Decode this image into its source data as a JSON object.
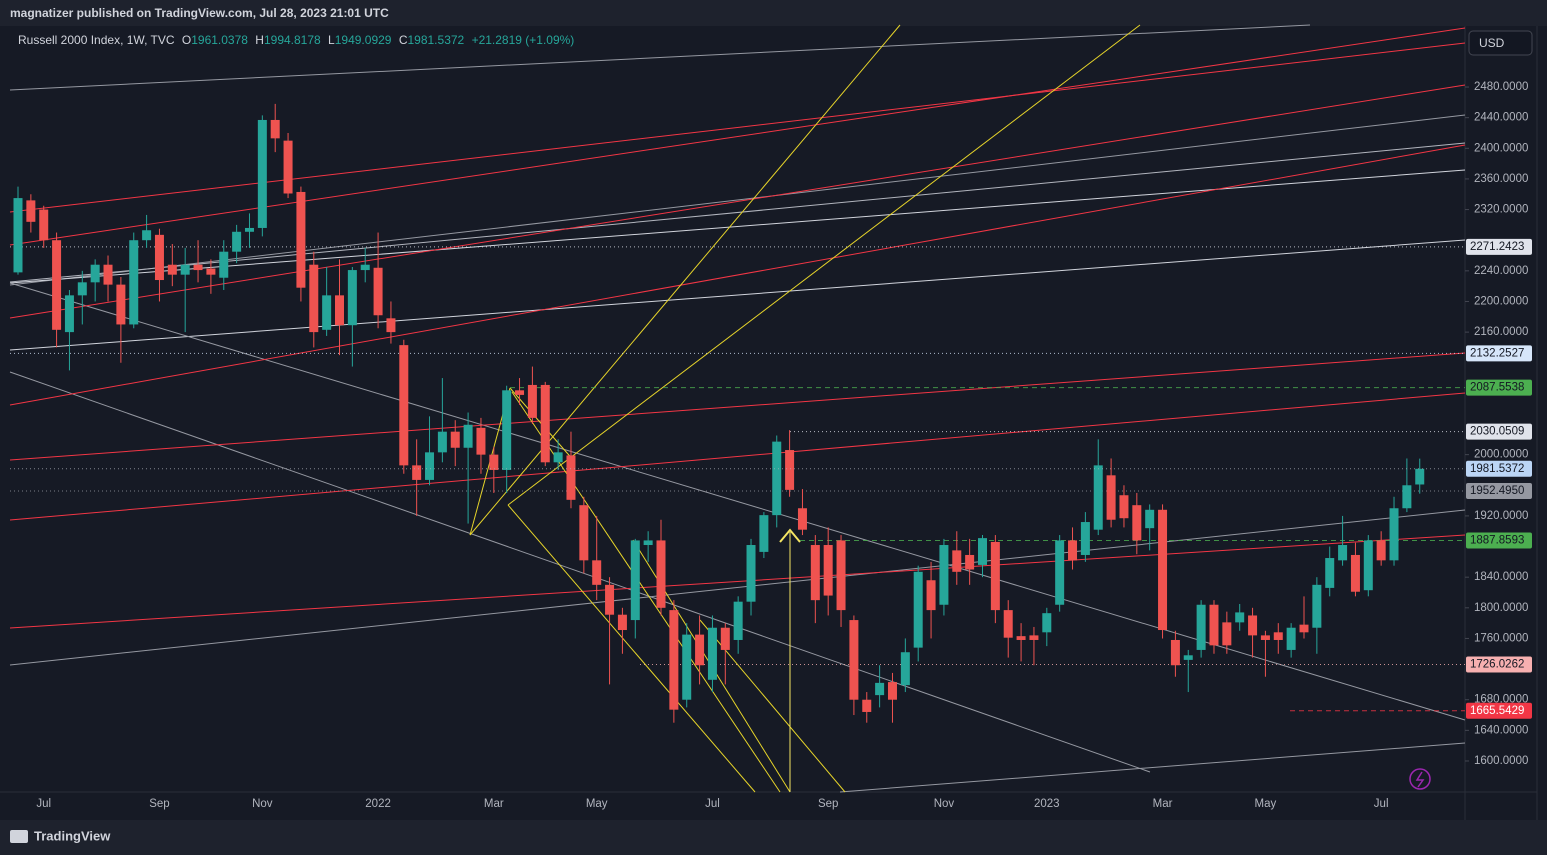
{
  "header": "magnatizer published on TradingView.com, Jul 28, 2023 21:01 UTC",
  "currency_button": "USD",
  "footer_logo": "TradingView",
  "chart_data": {
    "type": "candlestick",
    "ohlc_prefixes": [
      "O",
      "H",
      "L",
      "C"
    ],
    "change": "+21.2819 (+1.09%)",
    "categories": [
      null,
      null,
      "Jul",
      null,
      null,
      null,
      null,
      null,
      null,
      null,
      null,
      "Sep",
      null,
      null,
      null,
      null,
      null,
      null,
      null,
      "Nov",
      null,
      null,
      null,
      null,
      null,
      null,
      null,
      null,
      "2022",
      null,
      null,
      null,
      null,
      null,
      null,
      null,
      null,
      "Mar",
      null,
      null,
      null,
      null,
      null,
      null,
      null,
      "May",
      null,
      null,
      null,
      null,
      null,
      null,
      null,
      null,
      "Jul",
      null,
      null,
      null,
      null,
      null,
      null,
      null,
      null,
      "Sep",
      null,
      null,
      null,
      null,
      null,
      null,
      null,
      null,
      "Nov",
      null,
      null,
      null,
      null,
      null,
      null,
      null,
      "2023",
      null,
      null,
      null,
      null,
      null,
      null,
      null,
      null,
      "Mar",
      null,
      null,
      null,
      null,
      null,
      null,
      null,
      "May",
      null,
      null,
      null,
      null,
      null,
      null,
      null,
      null,
      "Jul",
      null,
      null,
      null
    ],
    "series": [
      {
        "name": "Russell 2000 Index, 1W, TVC",
        "up_color": "#26a69a",
        "down_color": "#ef5350",
        "open": [
          2238,
          2332,
          2320,
          2280,
          2160,
          2208,
          2225,
          2248,
          2222,
          2170,
          2280,
          2287,
          2248,
          2235,
          2248,
          2243,
          2231,
          2265,
          2291,
          2296,
          2437,
          2410,
          2343,
          2248,
          2163,
          2208,
          2169,
          2241,
          2244,
          2178,
          2143,
          1986,
          1967,
          2003,
          2030,
          2009,
          2035,
          2000,
          1980,
          2084,
          2091,
          2091,
          1990,
          1999,
          1934,
          1862,
          1830,
          1791,
          1784,
          1882,
          1888,
          1797,
          1680,
          1765,
          1706,
          1774,
          1758,
          1808,
          1873,
          1921,
          2006,
          1930,
          1882,
          1882,
          1888,
          1784,
          1680,
          1686,
          1703,
          1699,
          1748,
          1836,
          1804,
          1875,
          1869,
          1856,
          1886,
          1797,
          1763,
          1764,
          1768,
          1804,
          1888,
          1869,
          1902,
          1973,
          1947,
          1934,
          1904,
          1928,
          1758,
          1732,
          1745,
          1804,
          1781,
          1781,
          1790,
          1764,
          1768,
          1745,
          1778,
          1774,
          1826,
          1862,
          1869,
          1823,
          1888,
          1862,
          1930,
          1961.0378
        ],
        "high": [
          2350,
          2340,
          2325,
          2290,
          2215,
          2240,
          2255,
          2260,
          2232,
          2290,
          2313,
          2295,
          2275,
          2270,
          2280,
          2255,
          2280,
          2300,
          2315,
          2443,
          2458,
          2420,
          2350,
          2265,
          2245,
          2255,
          2245,
          2270,
          2290,
          2200,
          2150,
          2020,
          2050,
          2100,
          2045,
          2055,
          2048,
          2010,
          2090,
          2100,
          2115,
          2095,
          2020,
          2030,
          1945,
          1920,
          1840,
          1800,
          1890,
          1900,
          1915,
          1810,
          1780,
          1790,
          1790,
          1780,
          1815,
          1890,
          1925,
          2025,
          2032,
          1955,
          1895,
          1905,
          1895,
          1790,
          1690,
          1725,
          1715,
          1760,
          1855,
          1860,
          1890,
          1900,
          1890,
          1895,
          1895,
          1810,
          1780,
          1775,
          1800,
          1895,
          1905,
          1925,
          2020,
          1995,
          1960,
          1950,
          1935,
          1935,
          1770,
          1745,
          1810,
          1810,
          1795,
          1805,
          1800,
          1770,
          1780,
          1780,
          1815,
          1840,
          1880,
          1920,
          1885,
          1895,
          1900,
          1945,
          1995,
          1994.8178
        ],
        "low": [
          2235,
          2290,
          2270,
          2140,
          2110,
          2170,
          2200,
          2200,
          2120,
          2165,
          2270,
          2200,
          2220,
          2160,
          2225,
          2210,
          2215,
          2250,
          2270,
          2285,
          2395,
          2335,
          2200,
          2140,
          2155,
          2130,
          2115,
          2225,
          2165,
          2145,
          1975,
          1920,
          1960,
          1990,
          1985,
          1910,
          1975,
          1950,
          1950,
          2065,
          2040,
          1985,
          1980,
          1930,
          1845,
          1810,
          1700,
          1740,
          1760,
          1860,
          1790,
          1650,
          1670,
          1700,
          1690,
          1700,
          1740,
          1790,
          1865,
          1905,
          1945,
          1895,
          1780,
          1790,
          1775,
          1660,
          1650,
          1670,
          1650,
          1690,
          1730,
          1760,
          1790,
          1830,
          1830,
          1840,
          1780,
          1735,
          1730,
          1725,
          1750,
          1795,
          1850,
          1860,
          1895,
          1905,
          1905,
          1870,
          1875,
          1760,
          1710,
          1690,
          1735,
          1740,
          1740,
          1770,
          1735,
          1710,
          1740,
          1735,
          1760,
          1740,
          1815,
          1855,
          1815,
          1815,
          1855,
          1855,
          1925,
          1949.0929
        ],
        "close": [
          2335,
          2304,
          2280,
          2163,
          2208,
          2225,
          2248,
          2222,
          2170,
          2280,
          2293,
          2228,
          2235,
          2248,
          2241,
          2235,
          2265,
          2291,
          2296,
          2437,
          2413,
          2341,
          2218,
          2160,
          2208,
          2169,
          2241,
          2248,
          2182,
          2160,
          1986,
          1967,
          2003,
          2030,
          2009,
          2039,
          2000,
          1980,
          2084,
          2078,
          2048,
          1990,
          2003,
          1941,
          1862,
          1830,
          1791,
          1771,
          1888,
          1888,
          1800,
          1667,
          1765,
          1725,
          1774,
          1745,
          1808,
          1882,
          1921,
          2017,
          1954,
          1902,
          1810,
          1816,
          1797,
          1680,
          1664,
          1702,
          1680,
          1742,
          1847,
          1797,
          1882,
          1847,
          1850,
          1891,
          1797,
          1761,
          1758,
          1758,
          1793,
          1888,
          1862,
          1912,
          1986,
          1915,
          1917,
          1888,
          1928,
          1771,
          1725,
          1738,
          1804,
          1751,
          1751,
          1794,
          1764,
          1758,
          1758,
          1774,
          1768,
          1830,
          1865,
          1882,
          1821,
          1888,
          1862,
          1930,
          1960,
          1981.5372
        ]
      }
    ],
    "ylim": [
      1559.5,
      2561
    ],
    "yticks": [
      {
        "value": 1600,
        "label": "1600.0000"
      },
      {
        "value": 1640,
        "label": "1640.0000"
      },
      {
        "value": 1680,
        "label": "1680.0000"
      },
      {
        "value": 1760,
        "label": "1760.0000"
      },
      {
        "value": 1800,
        "label": "1800.0000"
      },
      {
        "value": 1840,
        "label": "1840.0000"
      },
      {
        "value": 1920,
        "label": "1920.0000"
      },
      {
        "value": 2000,
        "label": "2000.0000"
      },
      {
        "value": 2160,
        "label": "2160.0000"
      },
      {
        "value": 2200,
        "label": "2200.0000"
      },
      {
        "value": 2240,
        "label": "2240.0000"
      },
      {
        "value": 2320,
        "label": "2320.0000"
      },
      {
        "value": 2360,
        "label": "2360.0000"
      },
      {
        "value": 2400,
        "label": "2400.0000"
      },
      {
        "value": 2440,
        "label": "2440.0000"
      },
      {
        "value": 2480,
        "label": "2480.0000"
      }
    ],
    "grid": false,
    "price_lines": [
      {
        "value": 2271.2423,
        "color": "#e0e3eb",
        "style": "dotted"
      },
      {
        "value": 2132.2527,
        "color": "#d6e6fa",
        "style": "dotted"
      },
      {
        "value": 2087.5538,
        "color": "#4caf50",
        "style": "dashed"
      },
      {
        "value": 2030.0509,
        "color": "#e0e3eb",
        "style": "dotted"
      },
      {
        "value": 1952.495,
        "label": "1952.4950",
        "color": "#9598a1",
        "style": "dotted"
      },
      {
        "value": 1887.8593,
        "color": "#4caf50",
        "style": "dashed"
      },
      {
        "value": 1726.0262,
        "color": "#f7b0b0",
        "style": "dotted"
      },
      {
        "value": 1665.5429,
        "color": "#f23645",
        "style": "dashed"
      }
    ]
  }
}
